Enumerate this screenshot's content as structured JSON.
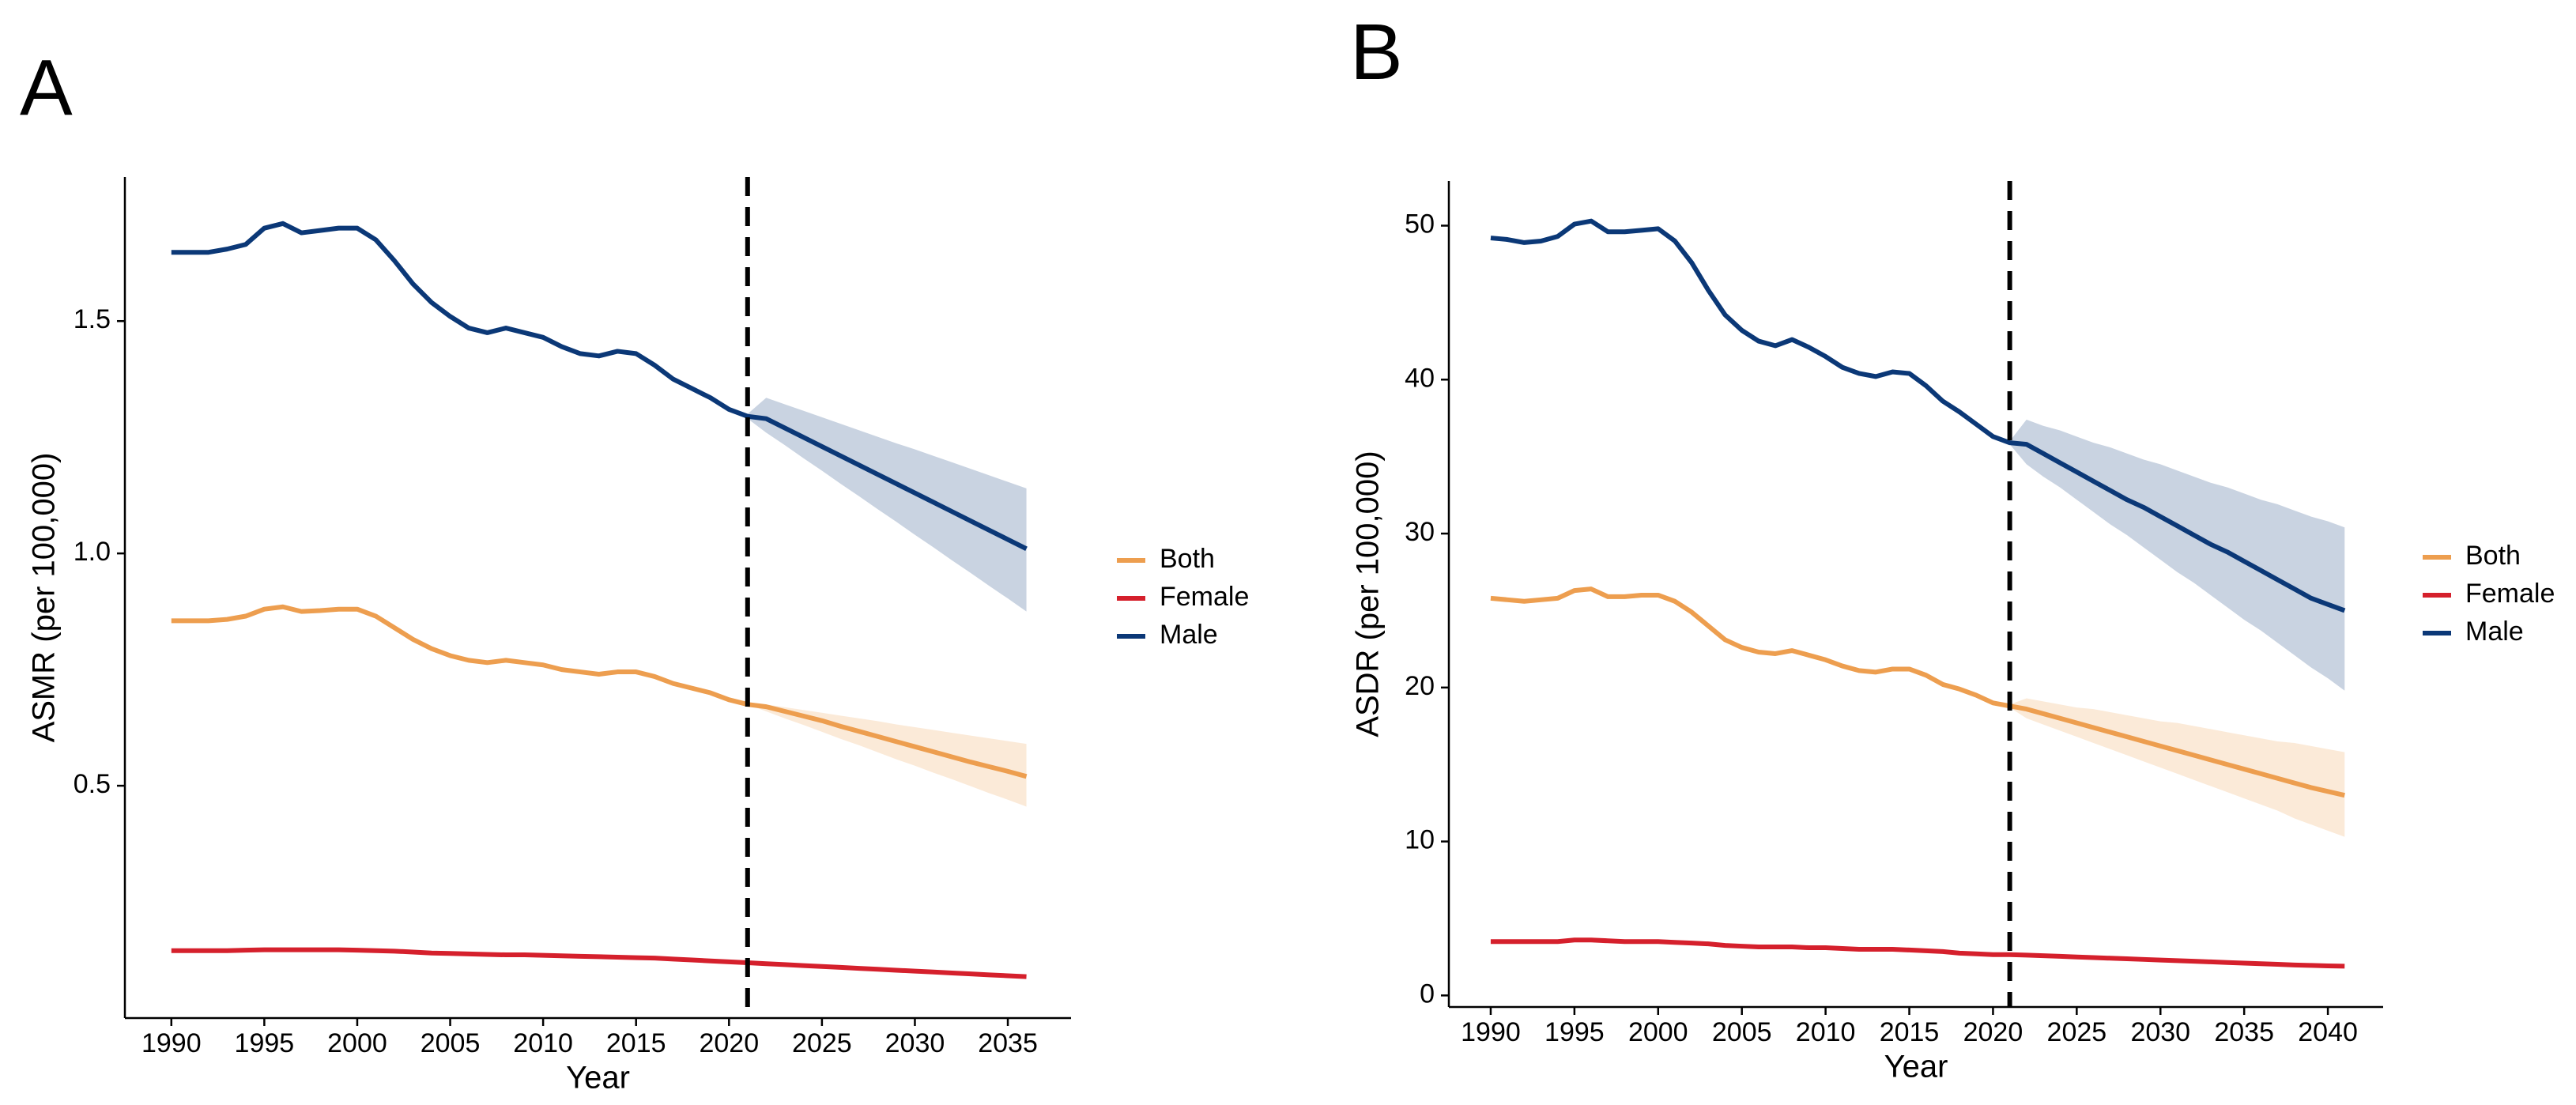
{
  "chart_data": [
    {
      "type": "line",
      "panel_label": "A",
      "x_label": "Year",
      "y_label": "ASMR (per 100,000)",
      "xlim": [
        1987.5,
        2038.4
      ],
      "ylim": [
        0.0,
        1.81
      ],
      "xticks": [
        1990,
        1995,
        2000,
        2005,
        2010,
        2015,
        2020,
        2025,
        2030,
        2035
      ],
      "yticks": [
        0.5,
        {
          "value": 1,
          "label": "1.0"
        },
        1.5
      ],
      "vline": 2021,
      "x": [
        1990,
        1991,
        1992,
        1993,
        1994,
        1995,
        1996,
        1997,
        1998,
        1999,
        2000,
        2001,
        2002,
        2003,
        2004,
        2005,
        2006,
        2007,
        2008,
        2009,
        2010,
        2011,
        2012,
        2013,
        2014,
        2015,
        2016,
        2017,
        2018,
        2019,
        2020,
        2021,
        2022,
        2023,
        2024,
        2025,
        2026,
        2027,
        2028,
        2029,
        2030,
        2031,
        2032,
        2033,
        2034,
        2035,
        2036
      ],
      "series": [
        {
          "name": "Both",
          "color": "#ED9E4F",
          "values": [
            0.855,
            0.855,
            0.855,
            0.858,
            0.865,
            0.88,
            0.885,
            0.875,
            0.877,
            0.88,
            0.88,
            0.865,
            0.84,
            0.815,
            0.795,
            0.78,
            0.77,
            0.765,
            0.77,
            0.765,
            0.76,
            0.75,
            0.745,
            0.74,
            0.745,
            0.745,
            0.735,
            0.72,
            0.71,
            0.7,
            0.685,
            0.675,
            0.67,
            0.66,
            0.65,
            0.64,
            0.628,
            0.617,
            0.606,
            0.595,
            0.584,
            0.573,
            0.562,
            0.551,
            0.541,
            0.531,
            0.52
          ],
          "band": {
            "x": [
              2021,
              2022,
              2023,
              2024,
              2025,
              2026,
              2027,
              2028,
              2029,
              2030,
              2031,
              2032,
              2033,
              2034,
              2035,
              2036
            ],
            "upper": [
              0.675,
              0.675,
              0.669,
              0.663,
              0.657,
              0.651,
              0.645,
              0.639,
              0.632,
              0.626,
              0.62,
              0.614,
              0.608,
              0.602,
              0.596,
              0.59
            ],
            "lower": [
              0.675,
              0.66,
              0.645,
              0.631,
              0.616,
              0.601,
              0.587,
              0.572,
              0.557,
              0.543,
              0.528,
              0.514,
              0.499,
              0.484,
              0.47,
              0.455
            ]
          }
        },
        {
          "name": "Female",
          "color": "#D5202C",
          "values": [
            0.145,
            0.145,
            0.145,
            0.145,
            0.146,
            0.147,
            0.147,
            0.147,
            0.147,
            0.147,
            0.146,
            0.145,
            0.144,
            0.142,
            0.14,
            0.139,
            0.138,
            0.137,
            0.136,
            0.136,
            0.135,
            0.134,
            0.133,
            0.132,
            0.131,
            0.13,
            0.129,
            0.127,
            0.125,
            0.123,
            0.121,
            0.119,
            0.117,
            0.115,
            0.113,
            0.111,
            0.109,
            0.107,
            0.105,
            0.103,
            0.101,
            0.099,
            0.097,
            0.095,
            0.093,
            0.091,
            0.089
          ]
        },
        {
          "name": "Male",
          "color": "#0B3877",
          "values": [
            1.648,
            1.648,
            1.648,
            1.655,
            1.665,
            1.7,
            1.71,
            1.69,
            1.695,
            1.7,
            1.7,
            1.675,
            1.63,
            1.58,
            1.54,
            1.51,
            1.485,
            1.475,
            1.485,
            1.475,
            1.465,
            1.445,
            1.43,
            1.425,
            1.435,
            1.43,
            1.405,
            1.375,
            1.355,
            1.335,
            1.31,
            1.295,
            1.29,
            1.27,
            1.25,
            1.23,
            1.21,
            1.19,
            1.17,
            1.15,
            1.13,
            1.11,
            1.09,
            1.07,
            1.05,
            1.03,
            1.01
          ],
          "band": {
            "x": [
              2021,
              2022,
              2023,
              2024,
              2025,
              2026,
              2027,
              2028,
              2029,
              2030,
              2031,
              2032,
              2033,
              2034,
              2035,
              2036
            ],
            "upper": [
              1.3,
              1.335,
              1.321,
              1.307,
              1.293,
              1.279,
              1.265,
              1.251,
              1.237,
              1.224,
              1.21,
              1.196,
              1.182,
              1.168,
              1.154,
              1.14
            ],
            "lower": [
              1.29,
              1.26,
              1.233,
              1.205,
              1.178,
              1.15,
              1.123,
              1.095,
              1.068,
              1.04,
              1.013,
              0.985,
              0.958,
              0.93,
              0.903,
              0.875
            ]
          }
        }
      ]
    },
    {
      "type": "line",
      "panel_label": "B",
      "x_label": "Year",
      "y_label": "ASDR (per 100,000)",
      "xlim": [
        1987.5,
        2043.3
      ],
      "ylim": [
        -0.75,
        52.9
      ],
      "xticks": [
        1990,
        1995,
        2000,
        2005,
        2010,
        2015,
        2020,
        2025,
        2030,
        2035,
        2040
      ],
      "yticks": [
        0,
        10,
        20,
        30,
        40,
        50
      ],
      "vline": 2021,
      "x": [
        1990,
        1991,
        1992,
        1993,
        1994,
        1995,
        1996,
        1997,
        1998,
        1999,
        2000,
        2001,
        2002,
        2003,
        2004,
        2005,
        2006,
        2007,
        2008,
        2009,
        2010,
        2011,
        2012,
        2013,
        2014,
        2015,
        2016,
        2017,
        2018,
        2019,
        2020,
        2021,
        2022,
        2023,
        2024,
        2025,
        2026,
        2027,
        2028,
        2029,
        2030,
        2031,
        2032,
        2033,
        2034,
        2035,
        2036,
        2037,
        2038,
        2039,
        2040,
        2041
      ],
      "series": [
        {
          "name": "Both",
          "color": "#ED9E4F",
          "values": [
            25.8,
            25.7,
            25.6,
            25.7,
            25.8,
            26.3,
            26.4,
            25.9,
            25.9,
            26.0,
            26.0,
            25.6,
            24.9,
            24.0,
            23.1,
            22.6,
            22.3,
            22.2,
            22.4,
            22.1,
            21.8,
            21.4,
            21.1,
            21.0,
            21.2,
            21.2,
            20.8,
            20.2,
            19.9,
            19.5,
            19.0,
            18.8,
            18.6,
            18.3,
            18.0,
            17.7,
            17.4,
            17.1,
            16.8,
            16.5,
            16.2,
            15.9,
            15.6,
            15.3,
            15.0,
            14.7,
            14.4,
            14.1,
            13.8,
            13.5,
            13.25,
            13.0
          ],
          "band": {
            "x": [
              2021,
              2022,
              2023,
              2024,
              2025,
              2026,
              2027,
              2028,
              2029,
              2030,
              2031,
              2032,
              2033,
              2034,
              2035,
              2036,
              2037,
              2038,
              2039,
              2040,
              2041
            ],
            "upper": [
              18.9,
              19.3,
              19.1,
              18.9,
              18.7,
              18.6,
              18.4,
              18.2,
              18.0,
              17.8,
              17.7,
              17.5,
              17.3,
              17.1,
              16.9,
              16.7,
              16.5,
              16.4,
              16.2,
              16.0,
              15.8
            ],
            "lower": [
              18.7,
              18.0,
              17.6,
              17.2,
              16.8,
              16.4,
              16.0,
              15.6,
              15.2,
              14.8,
              14.4,
              14.0,
              13.6,
              13.2,
              12.8,
              12.4,
              12.0,
              11.5,
              11.1,
              10.7,
              10.3
            ]
          }
        },
        {
          "name": "Female",
          "color": "#D5202C",
          "values": [
            3.5,
            3.5,
            3.5,
            3.5,
            3.5,
            3.6,
            3.6,
            3.55,
            3.5,
            3.5,
            3.5,
            3.45,
            3.4,
            3.35,
            3.25,
            3.2,
            3.15,
            3.15,
            3.15,
            3.1,
            3.1,
            3.05,
            3.0,
            3.0,
            3.0,
            2.95,
            2.9,
            2.85,
            2.75,
            2.7,
            2.65,
            2.65,
            2.62,
            2.58,
            2.54,
            2.5,
            2.46,
            2.42,
            2.38,
            2.34,
            2.3,
            2.26,
            2.22,
            2.18,
            2.14,
            2.1,
            2.06,
            2.02,
            1.98,
            1.95,
            1.92,
            1.9
          ]
        },
        {
          "name": "Male",
          "color": "#0B3877",
          "values": [
            49.2,
            49.1,
            48.9,
            49.0,
            49.3,
            50.1,
            50.3,
            49.6,
            49.6,
            49.7,
            49.8,
            49.0,
            47.6,
            45.8,
            44.2,
            43.2,
            42.5,
            42.2,
            42.6,
            42.1,
            41.5,
            40.8,
            40.4,
            40.2,
            40.5,
            40.4,
            39.6,
            38.6,
            37.9,
            37.1,
            36.3,
            35.9,
            35.8,
            35.2,
            34.6,
            34.0,
            33.4,
            32.8,
            32.2,
            31.7,
            31.1,
            30.5,
            29.9,
            29.3,
            28.8,
            28.2,
            27.6,
            27.0,
            26.4,
            25.8,
            25.4,
            25.0
          ],
          "band": {
            "x": [
              2021,
              2022,
              2023,
              2024,
              2025,
              2026,
              2027,
              2028,
              2029,
              2030,
              2031,
              2032,
              2033,
              2034,
              2035,
              2036,
              2037,
              2038,
              2039,
              2040,
              2041
            ],
            "upper": [
              36.0,
              37.4,
              37.0,
              36.7,
              36.3,
              35.9,
              35.6,
              35.2,
              34.8,
              34.5,
              34.1,
              33.7,
              33.3,
              33.0,
              32.6,
              32.2,
              31.9,
              31.5,
              31.1,
              30.8,
              30.4
            ],
            "lower": [
              35.8,
              34.5,
              33.7,
              33.0,
              32.2,
              31.4,
              30.6,
              29.9,
              29.1,
              28.3,
              27.5,
              26.8,
              26.0,
              25.2,
              24.4,
              23.7,
              22.9,
              22.1,
              21.3,
              20.6,
              19.8
            ]
          }
        }
      ]
    }
  ]
}
